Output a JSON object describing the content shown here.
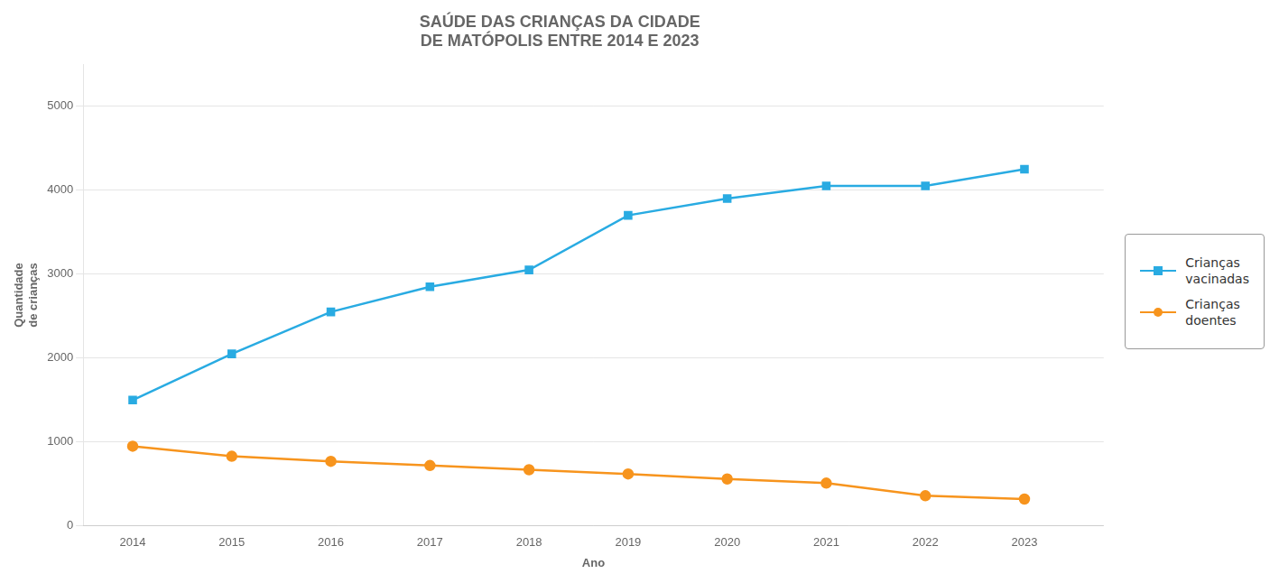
{
  "chart_data": {
    "type": "line",
    "title": "SAÚDE DAS CRIANÇAS DA CIDADE\nDE MATÓPOLIS ENTRE 2014 E 2023",
    "xlabel": "Ano",
    "ylabel": "Quantidade\nde crianças",
    "x": [
      2014,
      2015,
      2016,
      2017,
      2018,
      2019,
      2020,
      2021,
      2022,
      2023
    ],
    "xlim": [
      2013.5,
      2023.8
    ],
    "xticks": [
      2014,
      2015,
      2016,
      2017,
      2018,
      2019,
      2020,
      2021,
      2022,
      2023
    ],
    "ylim": [
      0,
      5500
    ],
    "yticks": [
      0,
      1000,
      2000,
      3000,
      4000,
      5000
    ],
    "grid": "y",
    "legend": "right",
    "series": [
      {
        "name": "Crianças\nvacinadas",
        "color": "#29ABE2",
        "marker": "square",
        "values": [
          1500,
          2050,
          2550,
          2850,
          3050,
          3700,
          3900,
          4050,
          4050,
          4250
        ]
      },
      {
        "name": "Crianças\ndoentes",
        "color": "#F7941D",
        "marker": "circle",
        "values": [
          950,
          830,
          770,
          720,
          670,
          620,
          560,
          510,
          360,
          320
        ]
      }
    ]
  }
}
